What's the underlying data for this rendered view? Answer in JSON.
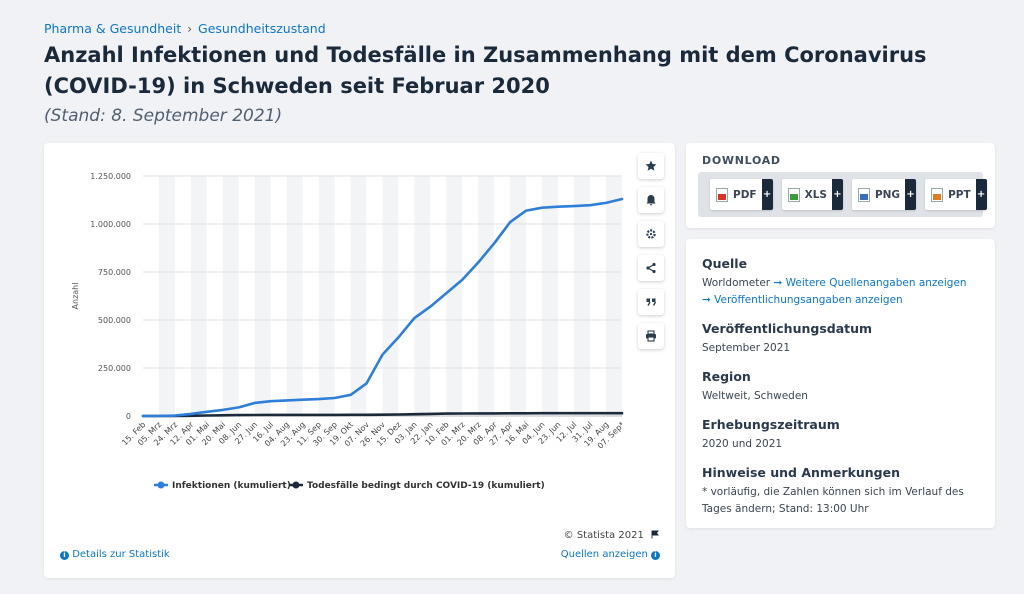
{
  "breadcrumb": {
    "item1": "Pharma & Gesundheit",
    "sep": "›",
    "item2": "Gesundheitszustand"
  },
  "title": "Anzahl Infektionen und Todesfälle in Zusammenhang mit dem Coronavirus (COVID-19) in Schweden seit Februar 2020",
  "subtitle": "(Stand: 8. September 2021)",
  "side_buttons": [
    "star-icon",
    "bell-icon",
    "gear-icon",
    "share-icon",
    "quote-icon",
    "print-icon"
  ],
  "chart_data": {
    "type": "line",
    "title": "",
    "xlabel": "",
    "ylabel": "Anzahl",
    "ylim": [
      0,
      1250000
    ],
    "yticks": [
      "0",
      "250.000",
      "500.000",
      "750.000",
      "1.000.000",
      "1.250.000"
    ],
    "x_ticks": [
      "15. Feb",
      "05. Mrz",
      "24. Mrz",
      "12. Apr",
      "01. Mai",
      "20. Mai",
      "08. Jun",
      "27. Jun",
      "16. Jul",
      "04. Aug",
      "23. Aug",
      "11. Sep",
      "30. Sep",
      "19. Okt",
      "07. Nov",
      "26. Nov",
      "15. Dez",
      "03. Jan",
      "22. Jan",
      "10. Feb",
      "01. Mrz",
      "20. Mrz",
      "08. Apr",
      "27. Apr",
      "16. Mai",
      "04. Jun",
      "23. Jun",
      "12. Jul",
      "31. Jul",
      "19. Aug",
      "07. Sep*"
    ],
    "grid": true,
    "legend_position": "bottom",
    "series": [
      {
        "name": "Infektionen (kumuliert)",
        "color": "#2f7ed8",
        "values": [
          0,
          0,
          2000,
          11000,
          22000,
          32000,
          45000,
          68000,
          77000,
          81000,
          85000,
          88000,
          94000,
          110000,
          170000,
          320000,
          410000,
          510000,
          570000,
          640000,
          710000,
          800000,
          900000,
          1010000,
          1070000,
          1085000,
          1090000,
          1093000,
          1098000,
          1110000,
          1130000
        ]
      },
      {
        "name": "Todesfälle bedingt durch COVID-19 (kumuliert)",
        "color": "#1b2a3b",
        "values": [
          0,
          0,
          100,
          1000,
          2600,
          3900,
          4800,
          5300,
          5600,
          5700,
          5800,
          5850,
          5900,
          6000,
          6200,
          6900,
          8000,
          9400,
          10800,
          12300,
          12900,
          13300,
          13700,
          14000,
          14300,
          14500,
          14550,
          14600,
          14620,
          14650,
          14700
        ]
      }
    ]
  },
  "chart_footer": {
    "copyright": "© Statista 2021",
    "details": "Details zur Statistik",
    "sources": "Quellen anzeigen"
  },
  "download": {
    "title": "DOWNLOAD",
    "buttons": [
      {
        "label": "PDF",
        "color": "#d9342b"
      },
      {
        "label": "XLS",
        "color": "#3c9a3c"
      },
      {
        "label": "PNG",
        "color": "#3a6fb8"
      },
      {
        "label": "PPT",
        "color": "#e07b22"
      }
    ],
    "plus": "+"
  },
  "info": {
    "source_h": "Quelle",
    "source_t": "Worldometer",
    "source_link1": "➞ Weitere Quellenangaben anzeigen",
    "source_link2": "➞ Veröffentlichungsangaben anzeigen",
    "date_h": "Veröffentlichungsdatum",
    "date_t": "September 2021",
    "region_h": "Region",
    "region_t": "Weltweit, Schweden",
    "period_h": "Erhebungszeitraum",
    "period_t": "2020 und 2021",
    "notes_h": "Hinweise und Anmerkungen",
    "notes_t": "* vorläufig, die Zahlen können sich im Verlauf des Tages ändern; Stand: 13:00 Uhr"
  }
}
